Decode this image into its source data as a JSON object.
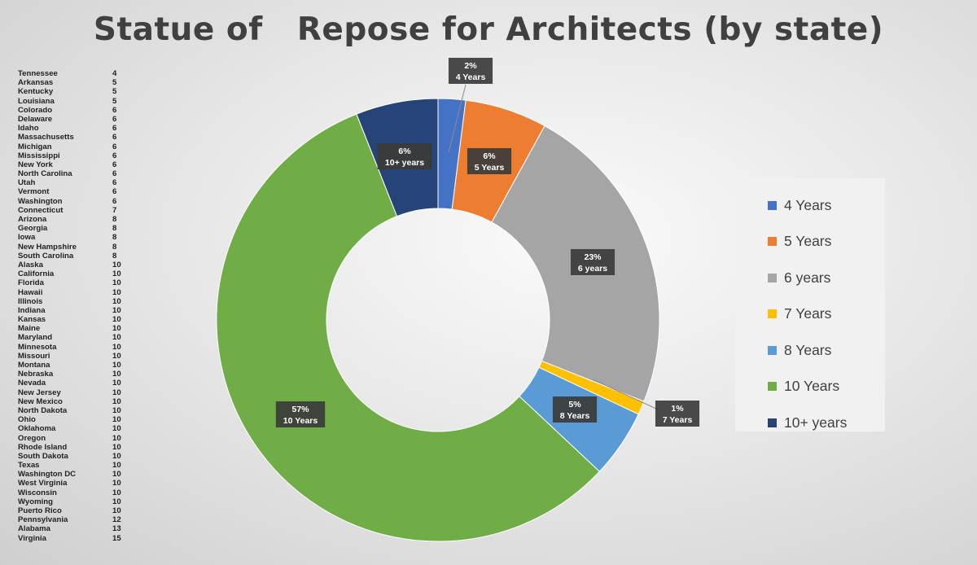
{
  "chart_data": {
    "type": "pie",
    "variant": "donut",
    "title": "Statue of   Repose for Architects (by state)",
    "legend_placement": "right",
    "slices": [
      {
        "label": "4 Years",
        "value": 2,
        "value_label": "2%",
        "category_label": "4 Years",
        "color": "#4472C4"
      },
      {
        "label": "5 Years",
        "value": 6,
        "value_label": "6%",
        "category_label": "5 Years",
        "color": "#ED7D31"
      },
      {
        "label": "6 years",
        "value": 23,
        "value_label": "23%",
        "category_label": "6 years",
        "color": "#A5A5A5"
      },
      {
        "label": "7 Years",
        "value": 1,
        "value_label": "1%",
        "category_label": "7 Years",
        "color": "#FFC000"
      },
      {
        "label": "8 Years",
        "value": 5,
        "value_label": "5%",
        "category_label": "8 Years",
        "color": "#5B9BD5"
      },
      {
        "label": "10 Years",
        "value": 57,
        "value_label": "57%",
        "category_label": "10 Years",
        "color": "#70AD47"
      },
      {
        "label": "10+ years",
        "value": 6,
        "value_label": "6%",
        "category_label": "10+ years",
        "color": "#264478"
      }
    ]
  },
  "state_table": [
    {
      "state": "Tennessee",
      "value": "4"
    },
    {
      "state": "Arkansas",
      "value": "5"
    },
    {
      "state": "Kentucky",
      "value": "5"
    },
    {
      "state": "Louisiana",
      "value": "5"
    },
    {
      "state": "Colorado",
      "value": "6"
    },
    {
      "state": "Delaware",
      "value": "6"
    },
    {
      "state": "Idaho",
      "value": "6"
    },
    {
      "state": "Massachusetts",
      "value": "6"
    },
    {
      "state": "Michigan",
      "value": "6"
    },
    {
      "state": "Mississippi",
      "value": "6"
    },
    {
      "state": "New York",
      "value": "6"
    },
    {
      "state": "North Carolina",
      "value": "6"
    },
    {
      "state": "Utah",
      "value": "6"
    },
    {
      "state": "Vermont",
      "value": "6"
    },
    {
      "state": "Washington",
      "value": "6"
    },
    {
      "state": "Connecticut",
      "value": "7"
    },
    {
      "state": "Arizona",
      "value": "8"
    },
    {
      "state": "Georgia",
      "value": "8"
    },
    {
      "state": "Iowa",
      "value": "8"
    },
    {
      "state": "New Hampshire",
      "value": "8"
    },
    {
      "state": "South Carolina",
      "value": "8"
    },
    {
      "state": "Alaska",
      "value": "10"
    },
    {
      "state": "California",
      "value": "10"
    },
    {
      "state": "Florida",
      "value": "10"
    },
    {
      "state": "Hawaii",
      "value": "10"
    },
    {
      "state": "Illinois",
      "value": "10"
    },
    {
      "state": "Indiana",
      "value": "10"
    },
    {
      "state": "Kansas",
      "value": "10"
    },
    {
      "state": "Maine",
      "value": "10"
    },
    {
      "state": "Maryland",
      "value": "10"
    },
    {
      "state": "Minnesota",
      "value": "10"
    },
    {
      "state": "Missouri",
      "value": "10"
    },
    {
      "state": "Montana",
      "value": "10"
    },
    {
      "state": "Nebraska",
      "value": "10"
    },
    {
      "state": "Nevada",
      "value": "10"
    },
    {
      "state": "New Jersey",
      "value": "10"
    },
    {
      "state": "New Mexico",
      "value": "10"
    },
    {
      "state": "North Dakota",
      "value": "10"
    },
    {
      "state": "Ohio",
      "value": "10"
    },
    {
      "state": "Oklahoma",
      "value": "10"
    },
    {
      "state": "Oregon",
      "value": "10"
    },
    {
      "state": "Rhode Island",
      "value": "10"
    },
    {
      "state": "South Dakota",
      "value": "10"
    },
    {
      "state": "Texas",
      "value": "10"
    },
    {
      "state": "Washington DC",
      "value": "10"
    },
    {
      "state": "West Virginia",
      "value": "10"
    },
    {
      "state": "Wisconsin",
      "value": "10"
    },
    {
      "state": "Wyoming",
      "value": "10"
    },
    {
      "state": "Puerto Rico",
      "value": "10"
    },
    {
      "state": "Pennsylvania",
      "value": "12"
    },
    {
      "state": "Alabama",
      "value": "13"
    },
    {
      "state": "Virginia",
      "value": "15"
    }
  ]
}
